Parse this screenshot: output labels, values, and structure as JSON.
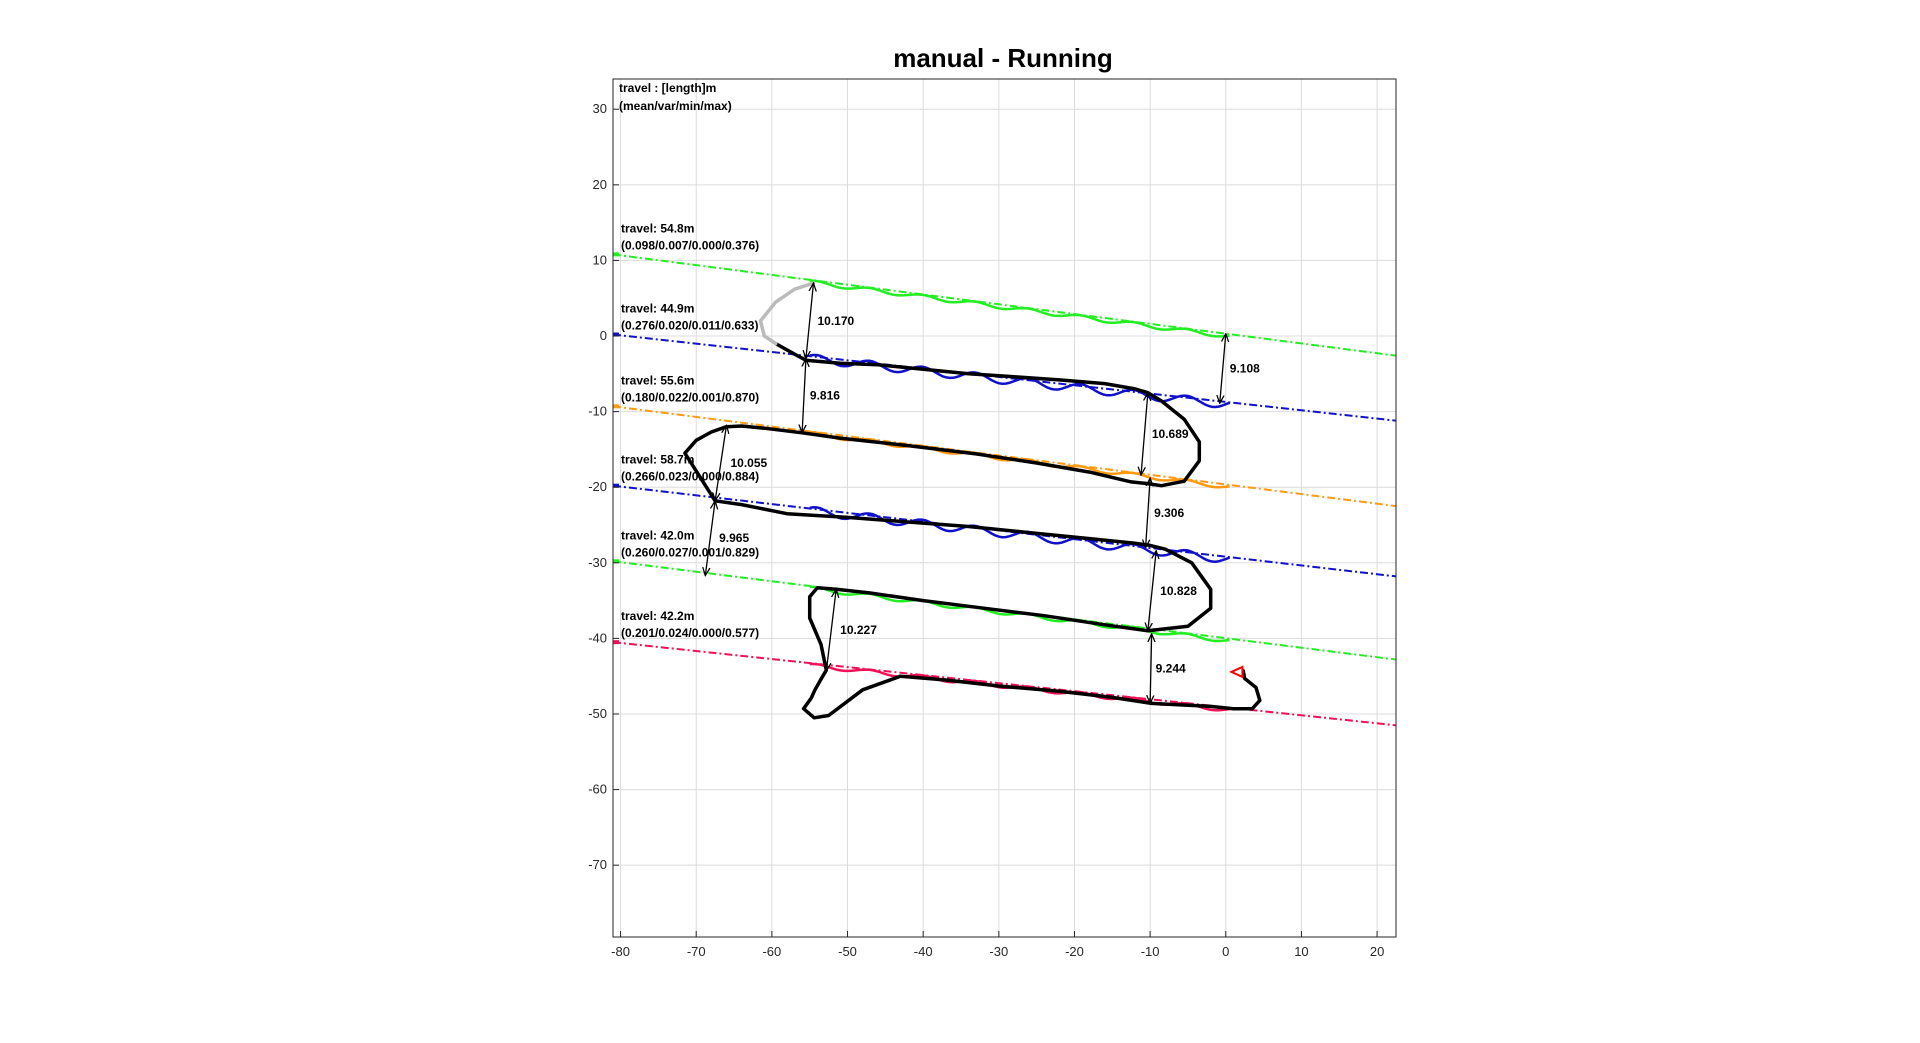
{
  "chart_data": {
    "type": "line",
    "title": "manual - Running",
    "xlabel": "",
    "ylabel": "",
    "xlim": [
      -81,
      22.5
    ],
    "ylim": [
      -79.5,
      34
    ],
    "grid": true,
    "x_ticks": [
      -80,
      -70,
      -60,
      -50,
      -40,
      -30,
      -20,
      -10,
      0,
      10,
      20
    ],
    "y_ticks": [
      30,
      20,
      10,
      0,
      -10,
      -20,
      -30,
      -40,
      -50,
      -60,
      -70
    ],
    "header_annotation": [
      "travel : [length]m",
      "(mean/var/min/max)"
    ],
    "colors": {
      "green": "#22ee22",
      "blue": "#1111cc",
      "orange": "#ff9911",
      "red": "#ee1155",
      "path": "#000000",
      "arrow": "#000000",
      "start_marker": "#ff0000"
    },
    "series": [
      {
        "color": "green",
        "x": [
          -81,
          22.5
        ],
        "y": [
          10.8,
          -2.6
        ],
        "travel_label": "travel: 54.8m",
        "stats_label": "(0.098/0.007/0.000/0.376)"
      },
      {
        "color": "blue",
        "x": [
          -81,
          22.5
        ],
        "y": [
          0.2,
          -11.2
        ],
        "travel_label": "travel: 44.9m",
        "stats_label": "(0.276/0.020/0.011/0.633)"
      },
      {
        "color": "orange",
        "x": [
          -81,
          22.5
        ],
        "y": [
          -9.3,
          -22.5
        ],
        "travel_label": "travel: 55.6m",
        "stats_label": "(0.180/0.022/0.001/0.870)"
      },
      {
        "color": "blue",
        "x": [
          -81,
          22.5
        ],
        "y": [
          -19.8,
          -31.8
        ],
        "travel_label": "travel: 58.7m",
        "stats_label": "(0.266/0.023/0.000/0.884)"
      },
      {
        "color": "green",
        "x": [
          -81,
          22.5
        ],
        "y": [
          -29.8,
          -42.8
        ],
        "travel_label": "travel: 42.0m",
        "stats_label": "(0.260/0.027/0.001/0.829)"
      },
      {
        "color": "red",
        "x": [
          -81,
          22.5
        ],
        "y": [
          -40.5,
          -51.5
        ],
        "travel_label": "travel: 42.2m",
        "stats_label": "(0.201/0.024/0.000/0.577)"
      }
    ],
    "distance_arrows": [
      {
        "label": "10.170",
        "x1": -54.5,
        "y1": 7.0,
        "x2": -55.5,
        "y2": -3.0
      },
      {
        "label": "9.108",
        "x1": 0,
        "y1": 0.3,
        "x2": -0.8,
        "y2": -8.9
      },
      {
        "label": "9.816",
        "x1": -55.5,
        "y1": -3.0,
        "x2": -56.0,
        "y2": -12.8
      },
      {
        "label": "10.689",
        "x1": -10.3,
        "y1": -7.5,
        "x2": -11.2,
        "y2": -18.4
      },
      {
        "label": "10.055",
        "x1": -66.0,
        "y1": -11.8,
        "x2": -67.5,
        "y2": -21.8
      },
      {
        "label": "9.306",
        "x1": -10.0,
        "y1": -18.8,
        "x2": -10.6,
        "y2": -28.0
      },
      {
        "label": "9.965",
        "x1": -67.5,
        "y1": -21.8,
        "x2": -68.8,
        "y2": -31.7
      },
      {
        "label": "10.828",
        "x1": -9.2,
        "y1": -28.4,
        "x2": -10.3,
        "y2": -39.0
      },
      {
        "label": "10.227",
        "x1": -51.5,
        "y1": -33.5,
        "x2": -52.8,
        "y2": -44.3
      },
      {
        "label": "9.244",
        "x1": -9.8,
        "y1": -39.4,
        "x2": -10.0,
        "y2": -48.6
      }
    ],
    "robot_path": {
      "x": [
        -59.5,
        -57,
        -55.5,
        -51,
        -46,
        -40,
        -34,
        -28,
        -22,
        -16,
        -12,
        -10.3,
        -8.5,
        -5.5,
        -3.5,
        -3.5,
        -5.5,
        -8.5,
        -10.6,
        -12.5,
        -18,
        -25,
        -33,
        -42,
        -51,
        -56,
        -61,
        -64,
        -66,
        -68,
        -70,
        -71.5,
        -67.5,
        -64,
        -58,
        -50,
        -42,
        -34,
        -26,
        -18,
        -12,
        -10,
        -8,
        -4.5,
        -2,
        -2,
        -5,
        -10.3,
        -16,
        -24,
        -32,
        -40,
        -47,
        -51.5,
        -54,
        -55,
        -55,
        -53.5,
        -52.8,
        -53.5,
        -54.3,
        -54.8,
        -55.8,
        -54.4,
        -52.5,
        -48,
        -43,
        -37,
        -30,
        -22,
        -15,
        -9.8,
        -6,
        -2,
        1,
        3.5,
        4.5,
        4,
        2.5,
        2.3
      ],
      "y": [
        -1.0,
        -2.4,
        -3.2,
        -3.6,
        -3.8,
        -4.4,
        -5.0,
        -5.4,
        -5.8,
        -6.3,
        -7.0,
        -7.5,
        -8.6,
        -11.0,
        -14.0,
        -16.5,
        -19.2,
        -19.8,
        -19.5,
        -19.3,
        -18.0,
        -16.8,
        -15.6,
        -14.5,
        -13.5,
        -12.8,
        -12.2,
        -11.9,
        -12.0,
        -12.7,
        -13.8,
        -15.5,
        -21.8,
        -22.3,
        -23.5,
        -24.0,
        -24.6,
        -25.2,
        -26.0,
        -26.8,
        -27.4,
        -27.7,
        -28.2,
        -30.0,
        -33.5,
        -36.0,
        -38.4,
        -39.0,
        -38.2,
        -37.0,
        -36.0,
        -35.0,
        -34.0,
        -33.5,
        -33.3,
        -34.5,
        -37.3,
        -40.8,
        -44.2,
        -45.4,
        -46.8,
        -47.9,
        -49.3,
        -50.5,
        -50.2,
        -46.8,
        -45.0,
        -45.5,
        -46.3,
        -47.0,
        -47.8,
        -48.6,
        -48.8,
        -49.0,
        -49.3,
        -49.3,
        -48.2,
        -46.5,
        -45.3,
        -44.3
      ]
    },
    "path_start_segment": {
      "x": [
        -54.5,
        -57.0,
        -59.5,
        -61.5,
        -61.0,
        -59.5
      ],
      "y": [
        7.0,
        6.2,
        4.5,
        2.0,
        0.0,
        -1.0
      ]
    },
    "start_marker": {
      "x": 1.8,
      "y": -44.3
    }
  }
}
